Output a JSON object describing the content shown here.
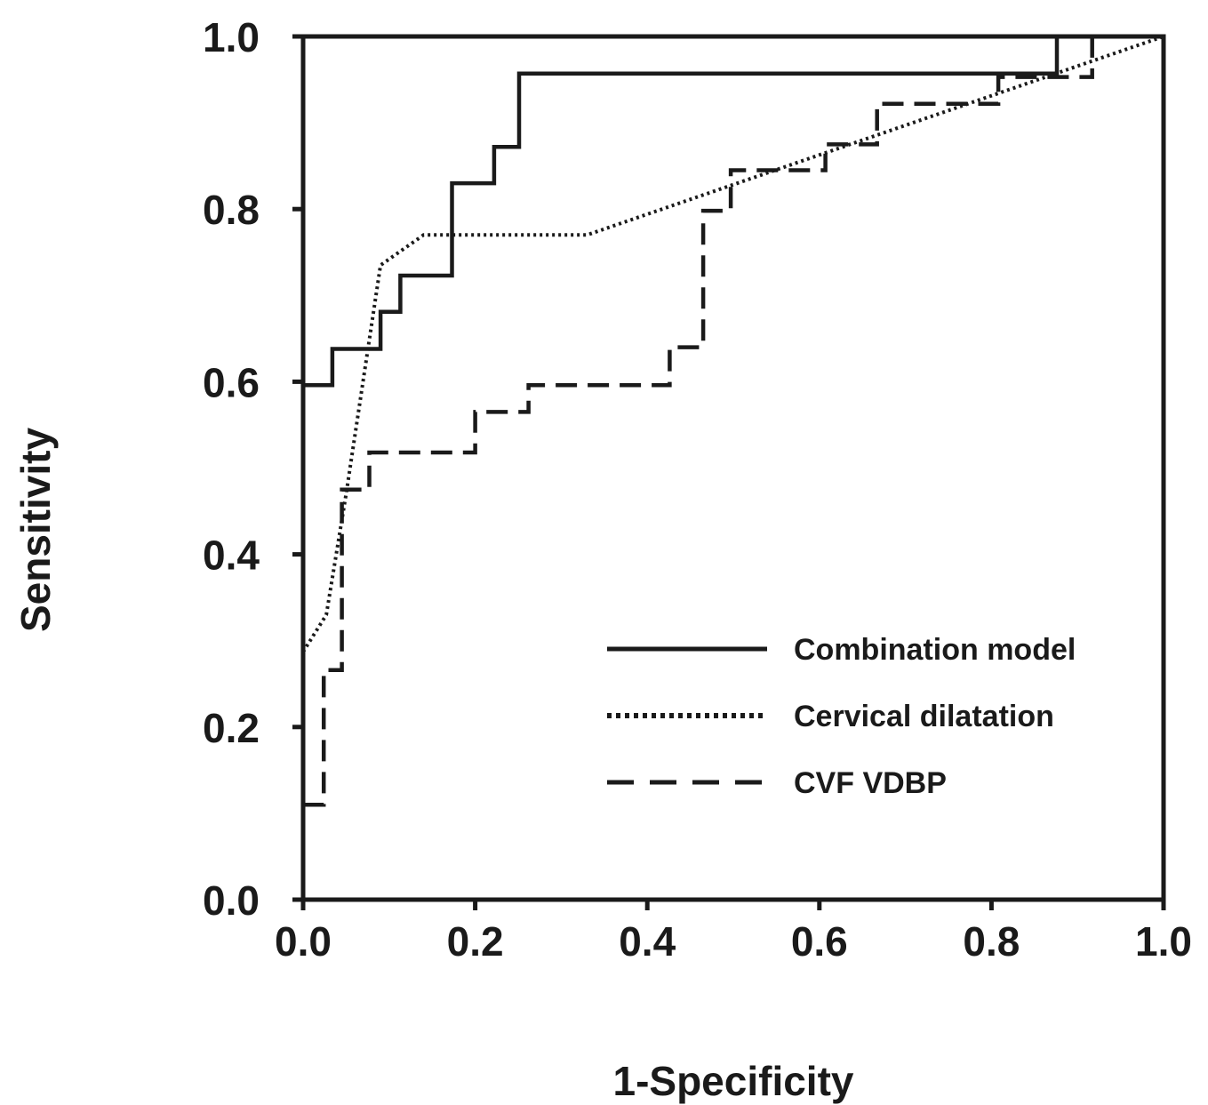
{
  "chart_data": {
    "type": "line",
    "title": "",
    "xlabel": "1-Specificity",
    "ylabel": "Sensitivity",
    "xlim": [
      0,
      1
    ],
    "ylim": [
      0,
      1
    ],
    "x_ticks": [
      "0.0",
      "0.2",
      "0.4",
      "0.6",
      "0.8",
      "1.0"
    ],
    "y_ticks": [
      "0.0",
      "0.2",
      "0.4",
      "0.6",
      "0.8",
      "1.0"
    ],
    "grid": false,
    "legend_position": "bottom-right",
    "line_color": "#1a1a1a",
    "series": [
      {
        "name": "Combination model",
        "style": "solid",
        "points": [
          [
            0,
            0.596
          ],
          [
            0.034,
            0.596
          ],
          [
            0.034,
            0.638
          ],
          [
            0.09,
            0.638
          ],
          [
            0.09,
            0.681
          ],
          [
            0.113,
            0.681
          ],
          [
            0.113,
            0.723
          ],
          [
            0.173,
            0.723
          ],
          [
            0.173,
            0.83
          ],
          [
            0.222,
            0.83
          ],
          [
            0.222,
            0.872
          ],
          [
            0.251,
            0.872
          ],
          [
            0.251,
            0.957
          ],
          [
            0.876,
            0.957
          ],
          [
            0.876,
            1.0
          ],
          [
            1.0,
            1.0
          ]
        ]
      },
      {
        "name": "Cervical dilatation",
        "style": "dotted",
        "points": [
          [
            0,
            0.287
          ],
          [
            0.027,
            0.33
          ],
          [
            0.05,
            0.47
          ],
          [
            0.09,
            0.735
          ],
          [
            0.14,
            0.77
          ],
          [
            0.33,
            0.77
          ],
          [
            1.0,
            1.0
          ]
        ]
      },
      {
        "name": "CVF VDBP",
        "style": "dashed",
        "points": [
          [
            0,
            0.11
          ],
          [
            0.024,
            0.11
          ],
          [
            0.024,
            0.266
          ],
          [
            0.045,
            0.266
          ],
          [
            0.045,
            0.475
          ],
          [
            0.077,
            0.475
          ],
          [
            0.077,
            0.518
          ],
          [
            0.2,
            0.518
          ],
          [
            0.2,
            0.565
          ],
          [
            0.262,
            0.565
          ],
          [
            0.262,
            0.596
          ],
          [
            0.426,
            0.596
          ],
          [
            0.426,
            0.64
          ],
          [
            0.465,
            0.64
          ],
          [
            0.465,
            0.798
          ],
          [
            0.497,
            0.798
          ],
          [
            0.497,
            0.845
          ],
          [
            0.607,
            0.845
          ],
          [
            0.607,
            0.875
          ],
          [
            0.667,
            0.875
          ],
          [
            0.667,
            0.922
          ],
          [
            0.808,
            0.922
          ],
          [
            0.808,
            0.953
          ],
          [
            0.917,
            0.953
          ],
          [
            0.917,
            1.0
          ],
          [
            1.0,
            1.0
          ]
        ]
      }
    ]
  }
}
